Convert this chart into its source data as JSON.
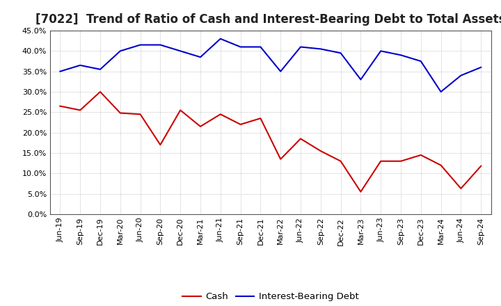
{
  "title": "[7022]  Trend of Ratio of Cash and Interest-Bearing Debt to Total Assets",
  "labels": [
    "Jun-19",
    "Sep-19",
    "Dec-19",
    "Mar-20",
    "Jun-20",
    "Sep-20",
    "Dec-20",
    "Mar-21",
    "Jun-21",
    "Sep-21",
    "Dec-21",
    "Mar-22",
    "Jun-22",
    "Sep-22",
    "Dec-22",
    "Mar-23",
    "Jun-23",
    "Sep-23",
    "Dec-23",
    "Mar-24",
    "Jun-24",
    "Sep-24"
  ],
  "cash": [
    0.265,
    0.255,
    0.3,
    0.248,
    0.245,
    0.17,
    0.255,
    0.215,
    0.245,
    0.22,
    0.235,
    0.135,
    0.185,
    0.155,
    0.13,
    0.055,
    0.13,
    0.13,
    0.145,
    0.12,
    0.063,
    0.118
  ],
  "interest_bearing_debt": [
    0.35,
    0.365,
    0.355,
    0.4,
    0.415,
    0.415,
    0.4,
    0.385,
    0.43,
    0.41,
    0.41,
    0.35,
    0.41,
    0.405,
    0.395,
    0.33,
    0.4,
    0.39,
    0.375,
    0.3,
    0.34,
    0.36
  ],
  "cash_color": "#cc0000",
  "debt_color": "#0000cc",
  "background_color": "#ffffff",
  "grid_color": "#aaaaaa",
  "ylim": [
    0.0,
    0.45
  ],
  "yticks": [
    0.0,
    0.05,
    0.1,
    0.15,
    0.2,
    0.25,
    0.3,
    0.35,
    0.4,
    0.45
  ],
  "legend_cash": "Cash",
  "legend_debt": "Interest-Bearing Debt",
  "title_fontsize": 12,
  "tick_fontsize": 8,
  "legend_fontsize": 9.5
}
